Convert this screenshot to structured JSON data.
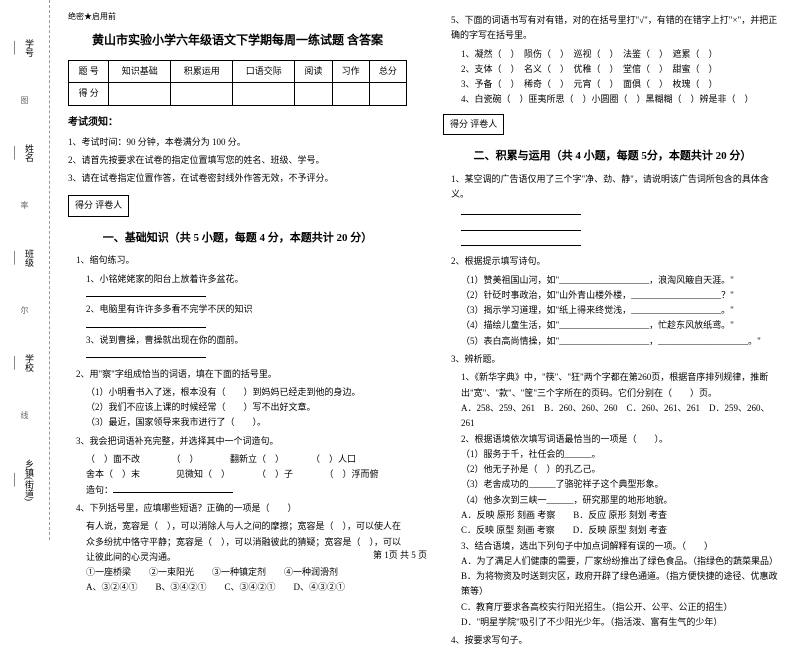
{
  "leftMargin": {
    "labels": [
      "学号",
      "姓名",
      "班级",
      "学校",
      "乡镇(街道)"
    ],
    "dashLabels": [
      "图",
      "率",
      "尔",
      "区",
      "线",
      "攻"
    ]
  },
  "header": {
    "confidential": "绝密★启用前",
    "title": "黄山市实验小学六年级语文下学期每周一练试题 含答案"
  },
  "scoreTable": {
    "row1": [
      "题 号",
      "知识基础",
      "积累运用",
      "口语交际",
      "阅读",
      "习作",
      "总分"
    ],
    "row2": [
      "得 分",
      "",
      "",
      "",
      "",
      "",
      ""
    ]
  },
  "notice": {
    "title": "考试须知：",
    "items": [
      "1、考试时间：90 分钟，本卷满分为 100 分。",
      "2、请首先按要求在试卷的指定位置填写您的姓名、班级、学号。",
      "3、请在试卷指定位置作答，在试卷密封线外作答无效，不予评分。"
    ]
  },
  "scoreBox": "得分  评卷人",
  "section1": {
    "title": "一、基础知识（共 5 小题，每题 4 分，本题共计 20 分）",
    "q1": {
      "stem": "1、缩句练习。",
      "subs": [
        "1、小铭姥姥家的阳台上放着许多盆花。",
        "2、电脑里有许许多多看不完学不厌的知识",
        "3、说到曹操，曹操就出现在你的面前。"
      ]
    },
    "q2": {
      "stem": "2、用\"察\"字组成恰当的词语，填在下面的括号里。",
      "subs": [
        "（1）小明看书入了迷，根本没有（　　）到妈妈已经走到他的身边。",
        "（2）我们不应该上课的时候经常（　　）写不出好文章。",
        "（3）最近，国家领导来我市进行了（　　）。"
      ]
    },
    "q3": {
      "stem": "3、我会把词语补充完整，并选择其中一个词造句。",
      "line1": "（　）面不改　　　　（　）　　　　翻新立（　）　　　　（　）人口",
      "line2": "舍本（　）末　　　　见微知（　）　　　　（　）子　　　　（　）浮而俯",
      "line3": "造句："
    },
    "q4": {
      "stem": "4、下列括号里，应填哪些短语？正确的一项是（　　）",
      "text": "有人说，宽容是（　），可以消除人与人之间的摩擦；宽容是（　），可以使人在众多纷扰中恪守平静；宽容是（　），可以消融彼此的猜疑；宽容是（　），可以让彼此间的心灵沟通。",
      "opts": "①一座桥梁　　②一束阳光　　③一种镇定剂　　④一种润滑剂",
      "choices": "A、③②④①　　B、③④②①　　C、③④②①　　D、④③②①"
    }
  },
  "rightCol": {
    "q5": {
      "stem": "5、下面的词语书写有对有错，对的在括号里打\"√\"，有错的在错字上打\"×\"，并把正确的字写在括号里。",
      "lines": [
        "1、凝然（　）　陨伤（　）　巡视（　）　法鉴（　）　遮累（　）",
        "2、支体（　）　名义（　）　优稚（　）　堂倌（　）　甜蜜（　）",
        "3、予备（　）　稀奇（　）　元宵（　）　面俱（　）　枚瑰（　）",
        "4、白瓷碗（　）匪夷所思（　）小圆圈（　）黑糊糊（　）辨是非（　）"
      ]
    },
    "section2": {
      "title": "二、积累与运用（共 4 小题，每题 5分，本题共计 20 分）",
      "q1": "1、某空调的广告语仅用了三个字\"净、劲、静\"，请说明该广告词所包含的具体含义。",
      "q2": {
        "stem": "2、根据提示填写诗句。",
        "subs": [
          "（1）赞美祖国山河，如\"____________________，浪淘风簸自天涯。\"",
          "（2）针砭时事政治，如\"山外青山楼外楼，____________________？\"",
          "（3）揭示学习道理，如\"纸上得来终觉浅，____________________。\"",
          "（4）描绘儿童生活，如\"____________________，忙趁东风放纸鸢。\"",
          "（5）表白高尚情操，如\"____________________，____________________。\""
        ]
      },
      "q3": {
        "stem": "3、辨析题。",
        "sub1": "1、《新华字典》中，\"筷\"、\"狂\"两个字都在第260页，根据音序排列规律，推断出\"宽\"、\"款\"、\"筐\"三个字所在的页码。它们分别在（　　）页。",
        "sub1opts": "A．258、259、261　B．260、260、260　C．260、261、261　D．259、260、261",
        "sub2": "2、根据语境依次填写词语最恰当的一项是（　　）。",
        "sub2lines": [
          "（1）服务于千，社任会的______。",
          "（2）他无子孙是（　）的孔乙己。",
          "（3）老舍成功的______了骆驼祥子这个典型形象。",
          "（4）他多次到三峡一______，研究那里的地形地貌。"
        ],
        "sub2opts": "A．反映 原形 刻画 考察　　B．反应 原形 刻划 考查\nC．反映 原型 刻画 考察　　D．反映 原型 刻划 考查",
        "sub3": "3、结合语境，选出下列句子中加点词解释有误的一项。（　　）",
        "sub3lines": [
          "A．为了满足人们健康的需要，厂家纷纷推出了绿色食品。（指绿色的蔬菜果品）",
          "B．为将物资及时送到灾区，政府开辟了绿色通道。（指方便快捷的途径、优惠政策等）",
          "C．教育厅要求各高校实行阳光招生。（指公开、公平、公正的招生）",
          "D．\"明星学院\"吸引了不少阳光少年。（指活泼、富有生气的少年）"
        ]
      },
      "q4": "4、按要求写句子。"
    }
  },
  "footer": "第 1页 共 5 页"
}
